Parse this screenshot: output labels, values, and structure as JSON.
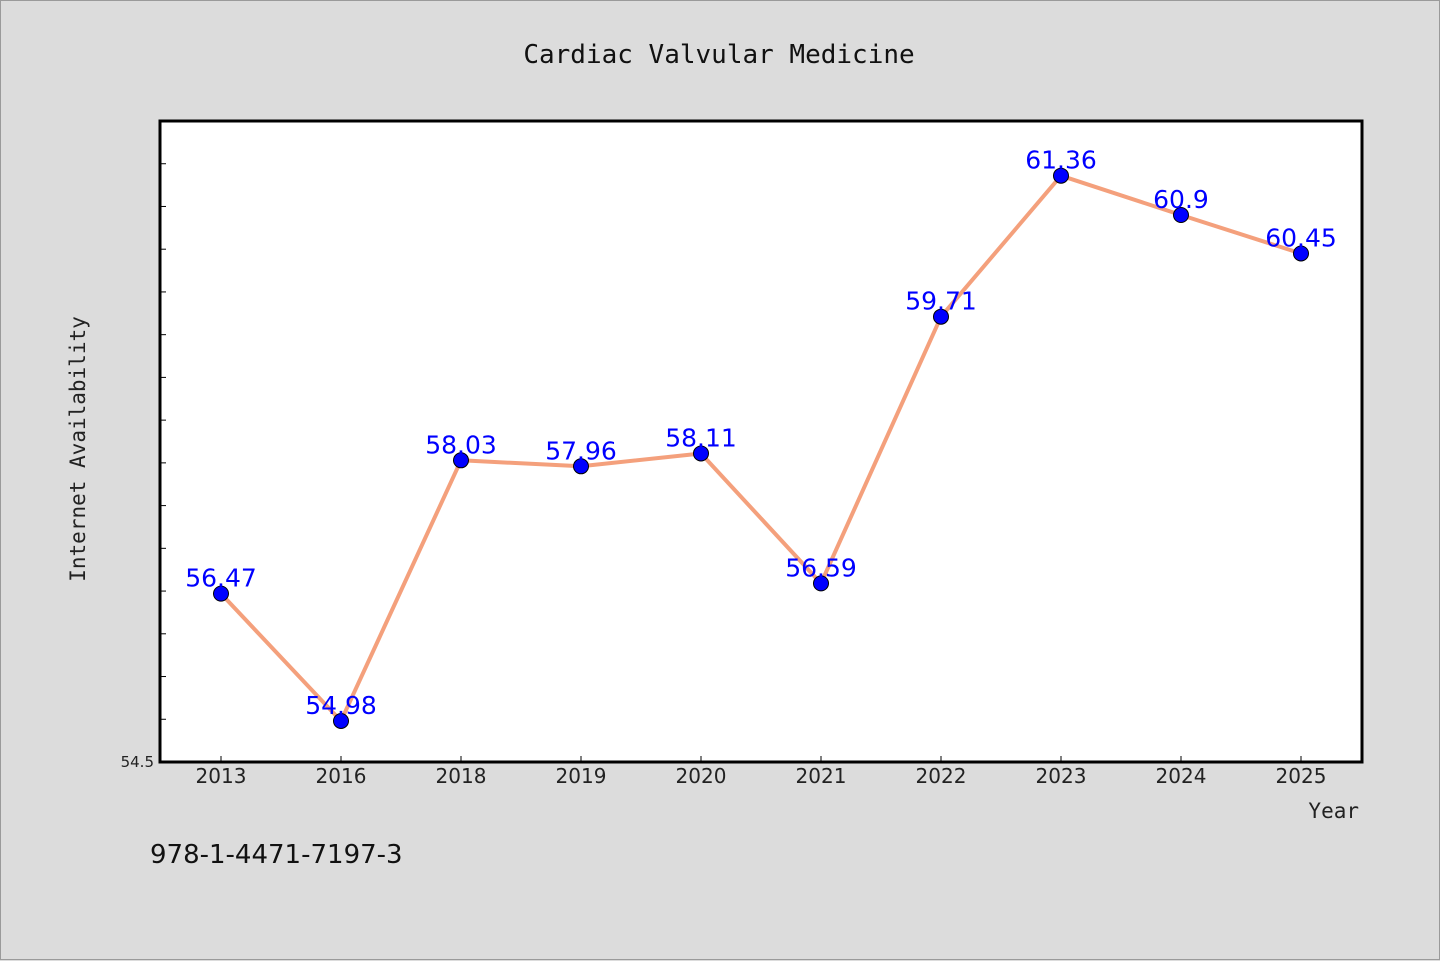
{
  "chart_data": {
    "type": "line",
    "title": "Cardiac Valvular Medicine",
    "xlabel": "Year",
    "ylabel": "Internet Availability",
    "categories": [
      "2013",
      "2016",
      "2018",
      "2019",
      "2020",
      "2021",
      "2022",
      "2023",
      "2024",
      "2025"
    ],
    "series": [
      {
        "values": [
          56.47,
          54.98,
          58.03,
          57.96,
          58.11,
          56.59,
          59.71,
          61.36,
          60.9,
          60.45
        ],
        "labels": [
          "56.47",
          "54.98",
          "58.03",
          "57.96",
          "58.11",
          "56.59",
          "59.71",
          "61.36",
          "60.9",
          "60.45"
        ]
      }
    ],
    "ylim": [
      54.5,
      62.0
    ],
    "y_tick_labels": [
      "54.5"
    ],
    "y_minor_tick_step": 0.5,
    "grid": false,
    "line_color": "#f4a07c",
    "marker_color": "#0000ff",
    "label_color": "#0000ff"
  },
  "footnote": "978-1-4471-7197-3"
}
